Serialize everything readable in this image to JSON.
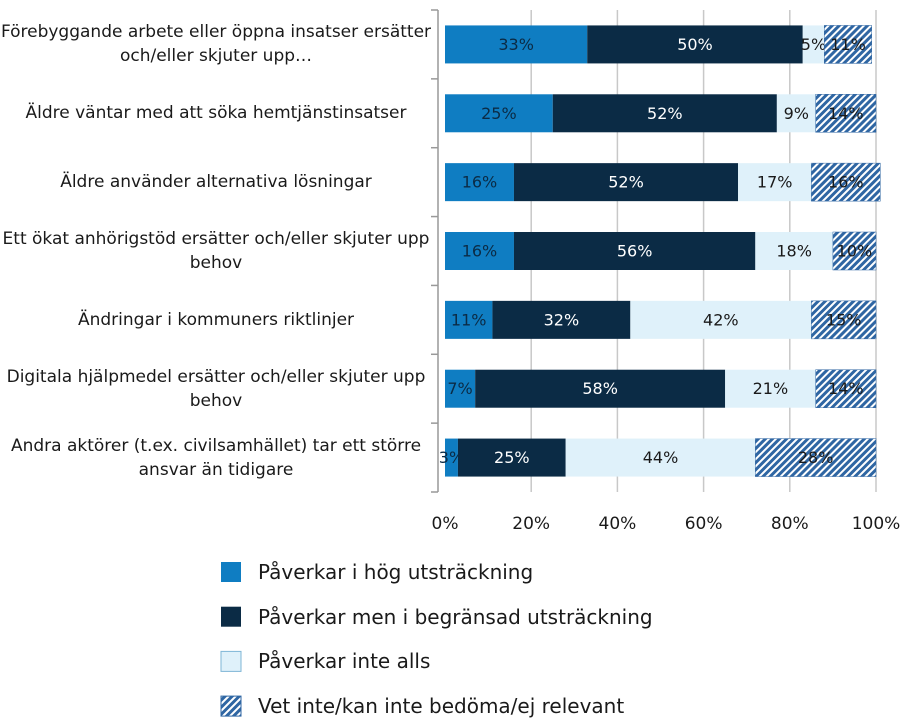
{
  "chart_data": {
    "type": "stacked-bar-horizontal",
    "categories": [
      "Förebyggande arbete eller öppna insatser ersätter och/eller skjuter upp…",
      "Äldre väntar med att söka hemtjänstinsatser",
      "Äldre använder alternativa lösningar",
      "Ett ökat anhörigstöd ersätter och/eller skjuter upp behov",
      "Ändringar i kommuners riktlinjer",
      "Digitala hjälpmedel ersätter och/eller skjuter upp behov",
      "Andra aktörer (t.ex. civilsamhället) tar ett större ansvar än tidigare"
    ],
    "series": [
      {
        "name": "Påverkar i hög utsträckning",
        "color": "#0f7dc2",
        "values": [
          33,
          25,
          16,
          16,
          11,
          7,
          3
        ],
        "value_labels": [
          "33%",
          "25%",
          "16%",
          "16%",
          "11%",
          "7%",
          "3%"
        ]
      },
      {
        "name": "Påverkar men i begränsad utsträckning",
        "color": "#0b2b45",
        "values": [
          50,
          52,
          52,
          56,
          32,
          58,
          25
        ],
        "value_labels": [
          "50%",
          "52%",
          "52%",
          "56%",
          "32%",
          "58%",
          "25%"
        ]
      },
      {
        "name": "Påverkar inte alls",
        "color": "#dff1fa",
        "values": [
          5,
          9,
          17,
          18,
          42,
          21,
          44
        ],
        "value_labels": [
          "5%",
          "9%",
          "17%",
          "18%",
          "42%",
          "21%",
          "44%"
        ]
      },
      {
        "name": "Vet inte/kan inte bedöma/ej relevant",
        "color": "#2f66a3",
        "pattern": "hatch",
        "values": [
          11,
          14,
          16,
          10,
          15,
          14,
          28
        ],
        "value_labels": [
          "11%",
          "14%",
          "16%",
          "10%",
          "15%",
          "14%",
          "28%"
        ]
      }
    ],
    "xlim": [
      0,
      100
    ],
    "xticks": [
      {
        "value": 0,
        "label": "0%"
      },
      {
        "value": 20,
        "label": "20%"
      },
      {
        "value": 40,
        "label": "40%"
      },
      {
        "value": 60,
        "label": "60%"
      },
      {
        "value": 80,
        "label": "80%"
      },
      {
        "value": 100,
        "label": "100%"
      }
    ],
    "grid": true
  }
}
